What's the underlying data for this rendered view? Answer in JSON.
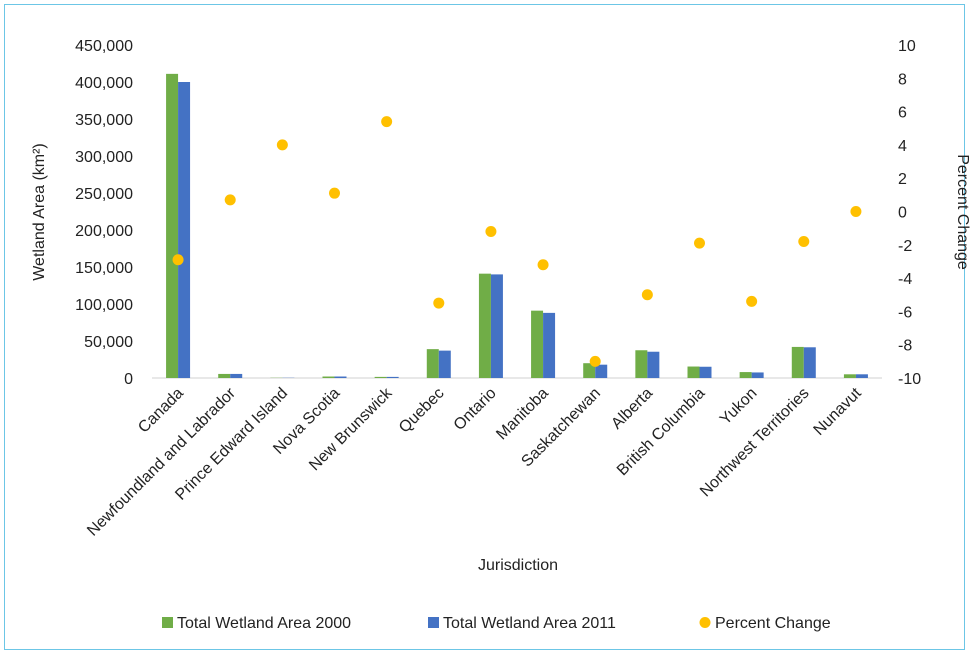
{
  "chart_data": {
    "type": "bar",
    "categories": [
      "Canada",
      "Newfoundland and Labrador",
      "Prince Edward Island",
      "Nova Scotia",
      "New Brunswick",
      "Quebec",
      "Ontario",
      "Manitoba",
      "Saskatchewan",
      "Alberta",
      "British Columbia",
      "Yukon",
      "Northwest Territories",
      "Nunavut"
    ],
    "series": [
      {
        "name": "Total Wetland Area 2000",
        "type": "bar",
        "axis": "left",
        "color": "#70ad47",
        "values": [
          411000,
          5500,
          300,
          2000,
          1500,
          39000,
          141000,
          91000,
          20000,
          37500,
          15500,
          8000,
          42000,
          5000
        ]
      },
      {
        "name": "Total Wetland Area 2011",
        "type": "bar",
        "axis": "left",
        "color": "#4472c4",
        "values": [
          400000,
          5500,
          300,
          2000,
          1500,
          37000,
          140000,
          88000,
          18000,
          35500,
          15200,
          7500,
          41500,
          5000
        ]
      },
      {
        "name": "Percent Change",
        "type": "scatter",
        "axis": "right",
        "color": "#ffc000",
        "values": [
          -2.9,
          0.7,
          4.0,
          1.1,
          5.4,
          -5.5,
          -1.2,
          -3.2,
          -9.0,
          -5.0,
          -1.9,
          -5.4,
          -1.8,
          0.0
        ]
      }
    ],
    "xlabel": "Jurisdiction",
    "ylabel": "Wetland Area (km²)",
    "y2label": "Percent Change",
    "ylim": [
      0,
      450000
    ],
    "y2lim": [
      -10,
      10
    ],
    "yticks": [
      "0",
      "50,000",
      "100,000",
      "150,000",
      "200,000",
      "250,000",
      "300,000",
      "350,000",
      "400,000",
      "450,000"
    ],
    "y2ticks": [
      "-10",
      "-8",
      "-6",
      "-4",
      "-2",
      "0",
      "2",
      "4",
      "6",
      "8",
      "10"
    ],
    "grid": false,
    "legend": "bottom"
  }
}
